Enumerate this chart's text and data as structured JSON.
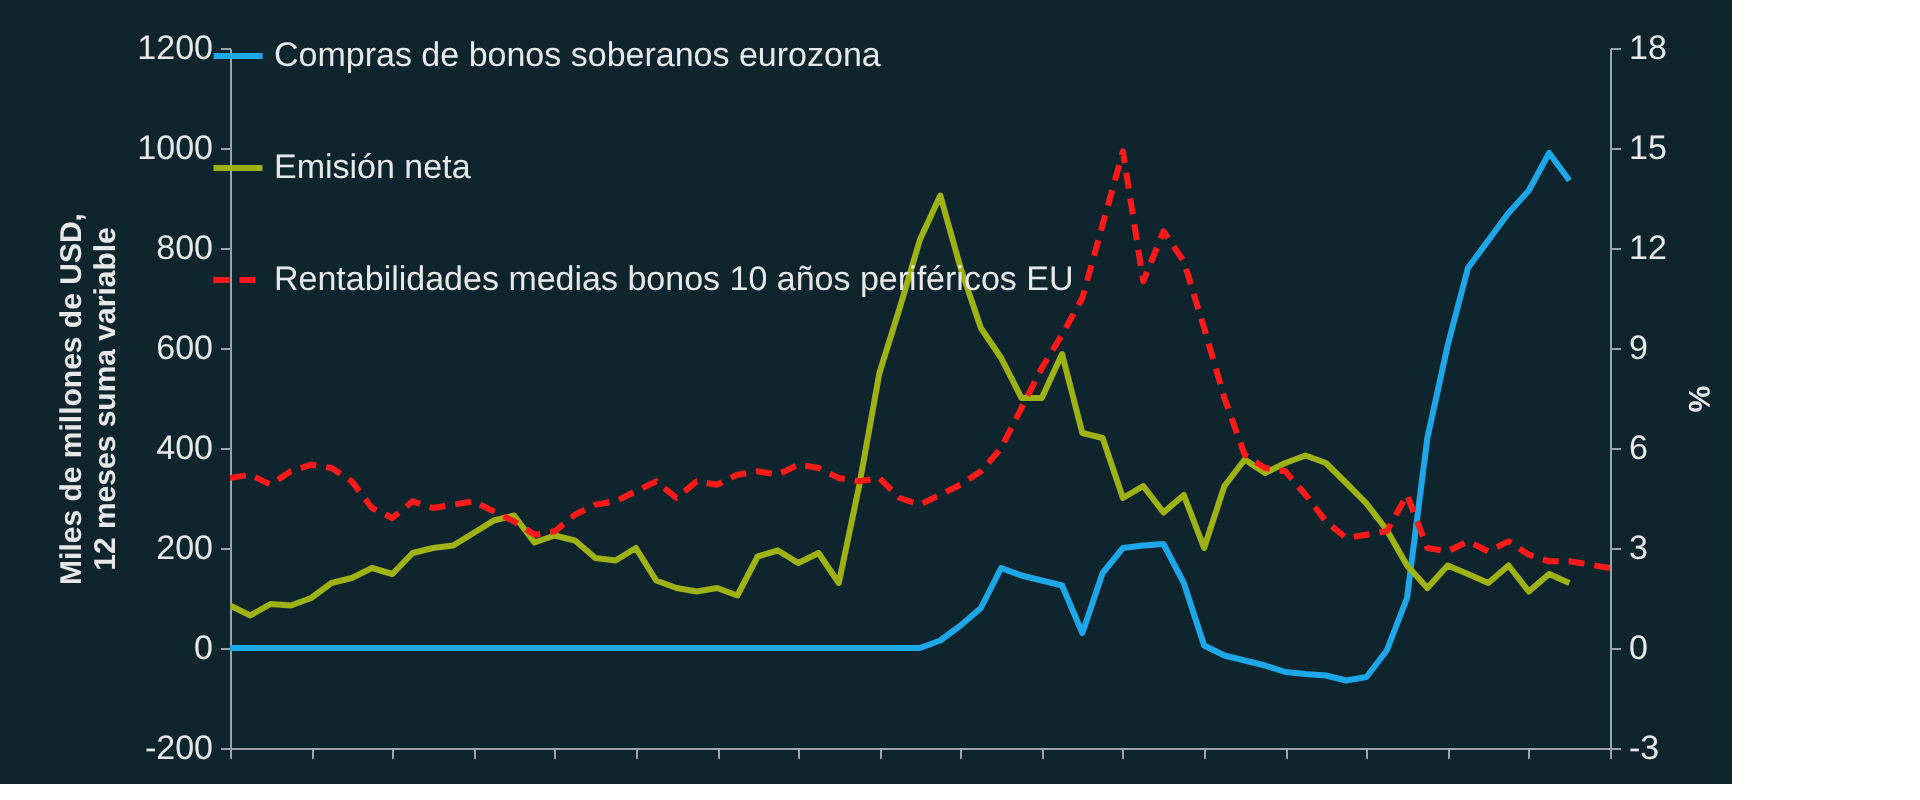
{
  "chart_data": {
    "type": "line",
    "ylabel": "Miles de millones de USD, 12 meses suma variable",
    "y2label": "%",
    "categories": [
      null,
      null,
      null,
      null,
      null,
      null,
      null,
      null,
      null,
      null,
      null,
      null,
      null,
      null,
      null,
      null,
      null,
      null,
      null,
      null,
      null,
      null,
      null,
      null,
      null,
      null,
      null,
      null,
      null,
      null,
      null,
      null,
      null,
      null,
      null,
      null,
      null,
      null,
      null,
      null,
      null,
      null,
      null,
      null,
      null,
      null,
      null,
      null,
      null,
      null,
      null,
      null,
      null,
      null,
      null,
      null,
      null,
      null,
      null,
      null,
      null,
      null,
      null,
      null,
      null,
      null,
      null,
      null,
      null
    ],
    "series": [
      {
        "name": "Compras de bonos soberanos eurozona",
        "color": "#1ea7e8",
        "line_style": "solid",
        "values": [
          0,
          0,
          0,
          0,
          0,
          0,
          0,
          0,
          0,
          0,
          0,
          0,
          0,
          0,
          0,
          0,
          0,
          0,
          0,
          0,
          0,
          0,
          0,
          0,
          0,
          0,
          0,
          0,
          0,
          0,
          0,
          0,
          0,
          0,
          0,
          15,
          45,
          80,
          160,
          145,
          135,
          125,
          30,
          150,
          200,
          205,
          208,
          130,
          5,
          -15,
          -25,
          -35,
          -48,
          -52,
          -55,
          -65,
          -58,
          -5,
          100,
          420,
          605,
          760,
          815,
          870,
          915,
          990,
          935,
          null,
          null
        ]
      },
      {
        "name": "Emisión neta",
        "color": "#9fb214",
        "line_style": "solid",
        "values": [
          85,
          65,
          88,
          85,
          100,
          130,
          140,
          160,
          148,
          190,
          200,
          205,
          230,
          255,
          265,
          211,
          225,
          215,
          180,
          175,
          200,
          135,
          120,
          113,
          120,
          105,
          183,
          195,
          170,
          190,
          130,
          324,
          550,
          680,
          817,
          905,
          760,
          640,
          580,
          500,
          500,
          588,
          430,
          420,
          300,
          324,
          271,
          306,
          200,
          324,
          377,
          350,
          370,
          385,
          370,
          330,
          289,
          236,
          165,
          120,
          165,
          148,
          130,
          165,
          113,
          148,
          130,
          null,
          null
        ]
      },
      {
        "name": "Rentabilidades medias bonos 10 años periféricos EU",
        "color": "#ff1a1a",
        "line_style": "dashed",
        "axis": "y2",
        "values": [
          5.1,
          5.2,
          4.9,
          5.3,
          5.5,
          5.4,
          5.0,
          4.2,
          3.9,
          4.4,
          4.2,
          4.3,
          4.4,
          4.1,
          3.8,
          3.4,
          3.5,
          4.0,
          4.3,
          4.4,
          4.7,
          5.0,
          4.5,
          5.0,
          4.9,
          5.2,
          5.3,
          5.2,
          5.5,
          5.4,
          5.1,
          5.0,
          5.1,
          4.5,
          4.3,
          4.6,
          4.9,
          5.3,
          6.0,
          7.2,
          8.4,
          9.4,
          10.5,
          12.7,
          14.9,
          11.0,
          12.5,
          11.6,
          9.6,
          7.5,
          5.8,
          5.4,
          5.3,
          4.6,
          3.8,
          3.3,
          3.4,
          3.5,
          4.6,
          3.0,
          2.9,
          3.2,
          2.9,
          3.2,
          2.8,
          2.6,
          2.6,
          2.5,
          2.4
        ]
      }
    ],
    "ylim": [
      -200,
      1200
    ],
    "yticks": [
      -200,
      0,
      200,
      400,
      600,
      800,
      1000,
      1200
    ],
    "y2lim": [
      -3,
      18
    ],
    "y2ticks": [
      -3,
      0,
      3,
      6,
      9,
      12,
      15,
      18
    ],
    "grid": false,
    "legend": "top left",
    "marker": "none",
    "tick_labels": "y"
  }
}
